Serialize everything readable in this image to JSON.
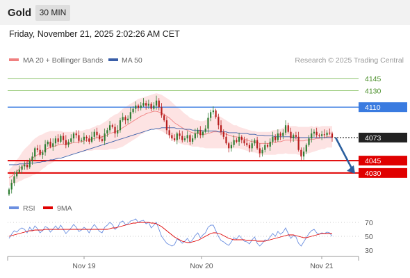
{
  "header": {
    "instrument": "Gold",
    "timeframe": "30 MIN"
  },
  "timestamp": "Friday, November 21, 2025 2:02:26 AM CET",
  "legend": {
    "items": [
      {
        "label": "MA 20 + Bollinger Bands",
        "color": "#f08080"
      },
      {
        "label": "MA 50",
        "color": "#3a5ea8"
      }
    ],
    "credit": "Research © 2025 Trading Central"
  },
  "colors": {
    "up": "#2e7d32",
    "down": "#b71c1c",
    "bands_fill": "#fde3e3",
    "ma20": "#f08080",
    "ma50": "#3a5ea8",
    "resistance_green": "#8cc46a",
    "pivot_blue": "#3a7be0",
    "support_red": "#e00000",
    "last_price_bg": "#222222",
    "arrow": "#2a5f9e",
    "rsi": "#6b8fe0",
    "rsi_ma": "#e00000"
  },
  "chart_data": [
    {
      "type": "candlestick",
      "title": "",
      "x_labels": [
        "Nov 19",
        "Nov 20",
        "Nov 21"
      ],
      "ylim": [
        4002,
        4160
      ],
      "levels": [
        {
          "value": 4145,
          "label": "4145",
          "kind": "resistance"
        },
        {
          "value": 4130,
          "label": "4130",
          "kind": "resistance"
        },
        {
          "value": 4110,
          "label": "4110",
          "kind": "pivot"
        },
        {
          "value": 4073,
          "label": "4073",
          "kind": "last"
        },
        {
          "value": 4045,
          "label": "4045",
          "kind": "support"
        },
        {
          "value": 4030,
          "label": "4030",
          "kind": "support"
        }
      ],
      "forecast": {
        "from": 4073,
        "to": 4030,
        "direction": "down"
      },
      "close": [
        4010,
        4018,
        4026,
        4031,
        4034,
        4038,
        4040,
        4037,
        4045,
        4050,
        4060,
        4058,
        4052,
        4055,
        4065,
        4068,
        4062,
        4066,
        4072,
        4068,
        4075,
        4070,
        4064,
        4068,
        4072,
        4078,
        4076,
        4069,
        4070,
        4074,
        4072,
        4068,
        4074,
        4080,
        4076,
        4071,
        4069,
        4078,
        4082,
        4088,
        4086,
        4078,
        4082,
        4094,
        4098,
        4094,
        4096,
        4104,
        4108,
        4112,
        4109,
        4112,
        4115,
        4112,
        4114,
        4108,
        4112,
        4118,
        4110,
        4100,
        4094,
        4082,
        4076,
        4072,
        4070,
        4078,
        4075,
        4070,
        4072,
        4076,
        4068,
        4072,
        4078,
        4082,
        4076,
        4080,
        4084,
        4097,
        4104,
        4106,
        4098,
        4088,
        4080,
        4074,
        4066,
        4060,
        4064,
        4070,
        4068,
        4074,
        4070,
        4066,
        4064,
        4060,
        4066,
        4070,
        4060,
        4054,
        4058,
        4064,
        4062,
        4068,
        4074,
        4070,
        4078,
        4075,
        4079,
        4088,
        4080,
        4072,
        4076,
        4074,
        4058,
        4050,
        4056,
        4064,
        4072,
        4078,
        4080,
        4076,
        4075,
        4077,
        4076,
        4079,
        4078,
        4073
      ],
      "ma20": [
        4024,
        4026,
        4029,
        4032,
        4035,
        4038,
        4041,
        4043,
        4045,
        4048,
        4050,
        4052,
        4054,
        4056,
        4058,
        4060,
        4061,
        4062,
        4063,
        4064,
        4065,
        4065,
        4065,
        4066,
        4066,
        4067,
        4067,
        4068,
        4068,
        4069,
        4070,
        4070,
        4071,
        4072,
        4073,
        4073,
        4074,
        4075,
        4076,
        4078,
        4079,
        4080,
        4081,
        4083,
        4085,
        4087,
        4089,
        4091,
        4093,
        4095,
        4097,
        4099,
        4100,
        4102,
        4103,
        4104,
        4105,
        4105,
        4104,
        4103,
        4101,
        4099,
        4097,
        4094,
        4091,
        4089,
        4087,
        4085,
        4083,
        4082,
        4080,
        4079,
        4078,
        4078,
        4077,
        4077,
        4077,
        4078,
        4079,
        4080,
        4080,
        4080,
        4079,
        4078,
        4077,
        4076,
        4075,
        4074,
        4074,
        4073,
        4072,
        4071,
        4070,
        4069,
        4068,
        4068,
        4067,
        4066,
        4066,
        4066,
        4066,
        4066,
        4067,
        4067,
        4068,
        4068,
        4069,
        4070,
        4070,
        4070,
        4070,
        4070,
        4069,
        4069,
        4069,
        4070,
        4070,
        4071,
        4071,
        4072,
        4072,
        4073,
        4073,
        4074,
        4074,
        4074
      ],
      "ma50": [
        4040,
        4040,
        4040,
        4040,
        4041,
        4041,
        4041,
        4041,
        4042,
        4042,
        4042,
        4043,
        4043,
        4044,
        4044,
        4045,
        4046,
        4046,
        4047,
        4048,
        4048,
        4049,
        4050,
        4051,
        4052,
        4053,
        4054,
        4055,
        4056,
        4057,
        4058,
        4059,
        4060,
        4061,
        4062,
        4063,
        4064,
        4065,
        4066,
        4067,
        4068,
        4069,
        4070,
        4071,
        4072,
        4073,
        4074,
        4075,
        4076,
        4077,
        4078,
        4079,
        4080,
        4081,
        4082,
        4083,
        4083,
        4084,
        4084,
        4085,
        4085,
        4085,
        4085,
        4085,
        4085,
        4084,
        4084,
        4084,
        4083,
        4083,
        4083,
        4082,
        4082,
        4082,
        4082,
        4081,
        4081,
        4081,
        4081,
        4081,
        4081,
        4080,
        4080,
        4080,
        4080,
        4079,
        4079,
        4079,
        4079,
        4078,
        4078,
        4078,
        4078,
        4077,
        4077,
        4077,
        4076,
        4076,
        4076,
        4075,
        4075,
        4075,
        4075,
        4074,
        4074,
        4074,
        4074,
        4074,
        4074,
        4074,
        4073,
        4073,
        4073,
        4073,
        4073,
        4073,
        4073,
        4073,
        4073,
        4073,
        4073,
        4073,
        4073,
        4073,
        4073,
        4073
      ],
      "band_width": [
        10,
        11,
        12,
        14,
        15,
        17,
        18,
        19,
        20,
        21,
        22,
        22,
        22,
        21,
        21,
        20,
        20,
        19,
        18,
        17,
        16,
        15,
        15,
        14,
        14,
        13,
        13,
        13,
        13,
        13,
        13,
        13,
        14,
        14,
        15,
        15,
        16,
        17,
        18,
        19,
        20,
        21,
        21,
        22,
        23,
        23,
        23,
        23,
        23,
        23,
        23,
        22,
        22,
        21,
        21,
        21,
        21,
        22,
        22,
        22,
        22,
        22,
        22,
        22,
        22,
        21,
        21,
        20,
        19,
        18,
        17,
        17,
        16,
        16,
        16,
        16,
        17,
        18,
        19,
        20,
        20,
        20,
        19,
        18,
        17,
        16,
        15,
        14,
        14,
        13,
        13,
        13,
        13,
        13,
        13,
        13,
        13,
        14,
        14,
        14,
        14,
        14,
        15,
        15,
        15,
        15,
        16,
        16,
        17,
        17,
        17,
        17,
        17,
        17,
        17,
        16,
        16,
        16,
        15,
        15,
        14,
        14,
        14,
        13,
        13,
        13
      ]
    },
    {
      "type": "line",
      "title": "",
      "legend": [
        {
          "name": "RSI",
          "color": "#6b8fe0"
        },
        {
          "name": "9MA",
          "color": "#e00000"
        }
      ],
      "y_ticks": [
        70,
        50,
        30
      ],
      "ylim": [
        22,
        78
      ],
      "rsi": [
        47,
        53,
        58,
        56,
        60,
        62,
        60,
        55,
        63,
        58,
        65,
        61,
        55,
        58,
        64,
        62,
        56,
        60,
        65,
        60,
        66,
        60,
        54,
        58,
        62,
        67,
        63,
        57,
        59,
        63,
        60,
        55,
        62,
        67,
        62,
        57,
        55,
        63,
        66,
        70,
        67,
        60,
        63,
        70,
        72,
        67,
        68,
        72,
        73,
        75,
        70,
        72,
        73,
        68,
        70,
        62,
        66,
        70,
        60,
        50,
        45,
        40,
        38,
        36,
        38,
        46,
        44,
        40,
        43,
        47,
        41,
        45,
        51,
        55,
        48,
        52,
        55,
        63,
        66,
        66,
        58,
        50,
        44,
        42,
        39,
        37,
        42,
        48,
        46,
        51,
        47,
        43,
        42,
        39,
        45,
        49,
        40,
        36,
        40,
        45,
        44,
        49,
        54,
        50,
        57,
        53,
        56,
        62,
        54,
        47,
        51,
        49,
        40,
        36,
        42,
        48,
        54,
        58,
        60,
        55,
        53,
        55,
        54,
        56,
        55,
        50
      ],
      "rsi_ma": [
        50,
        51,
        52,
        53,
        54,
        55,
        56,
        57,
        58,
        58,
        59,
        59,
        59,
        59,
        60,
        60,
        60,
        60,
        60,
        60,
        60,
        60,
        60,
        60,
        60,
        60,
        60,
        60,
        60,
        60,
        60,
        60,
        60,
        60,
        60,
        60,
        60,
        60,
        60,
        61,
        62,
        62,
        63,
        64,
        65,
        66,
        67,
        68,
        69,
        69,
        70,
        70,
        70,
        70,
        70,
        69,
        69,
        68,
        66,
        64,
        61,
        58,
        55,
        52,
        49,
        47,
        45,
        43,
        42,
        41,
        41,
        42,
        43,
        44,
        46,
        48,
        50,
        52,
        54,
        55,
        55,
        54,
        53,
        51,
        49,
        47,
        46,
        45,
        45,
        45,
        45,
        45,
        44,
        44,
        44,
        44,
        43,
        43,
        43,
        43,
        44,
        45,
        46,
        47,
        48,
        49,
        50,
        51,
        52,
        52,
        52,
        51,
        50,
        49,
        48,
        48,
        49,
        50,
        51,
        52,
        53,
        54,
        54,
        54,
        54,
        54
      ]
    }
  ]
}
